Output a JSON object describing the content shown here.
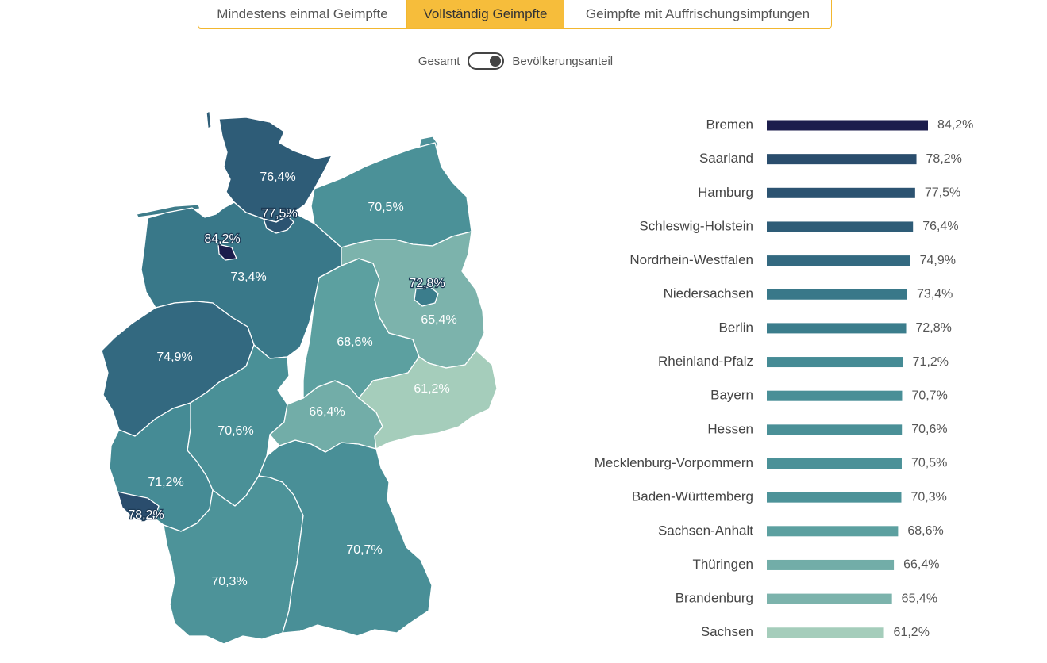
{
  "tabs": [
    {
      "label": "Mindestens einmal Geimpfte",
      "active": false
    },
    {
      "label": "Vollständig Geimpfte",
      "active": true
    },
    {
      "label": "Geimpfte mit Auffrischungsimpfungen",
      "active": false
    }
  ],
  "toggle": {
    "left_label": "Gesamt",
    "right_label": "Bevölkerungsanteil",
    "state": "Bevölkerungsanteil"
  },
  "colors": {
    "accent": "#f6bd3b",
    "scale_low": "#a5cdbb",
    "scale_high": "#1c1d4c"
  },
  "chart_data": {
    "type": "bar",
    "orientation": "horizontal",
    "categories": [
      "Bremen",
      "Saarland",
      "Hamburg",
      "Schleswig-Holstein",
      "Nordrhein-Westfalen",
      "Niedersachsen",
      "Berlin",
      "Rheinland-Pfalz",
      "Bayern",
      "Hessen",
      "Mecklenburg-Vorpommern",
      "Baden-Württemberg",
      "Sachsen-Anhalt",
      "Thüringen",
      "Brandenburg",
      "Sachsen"
    ],
    "values": [
      84.2,
      78.2,
      77.5,
      76.4,
      74.9,
      73.4,
      72.8,
      71.2,
      70.7,
      70.6,
      70.5,
      70.3,
      68.6,
      66.4,
      65.4,
      61.2
    ],
    "value_labels": [
      "84,2%",
      "78,2%",
      "77,5%",
      "76,4%",
      "74,9%",
      "73,4%",
      "72,8%",
      "71,2%",
      "70,7%",
      "70,6%",
      "70,5%",
      "70,3%",
      "68,6%",
      "66,4%",
      "65,4%",
      "61,2%"
    ],
    "unit": "%",
    "map_labels": {
      "Schleswig-Holstein": "76,4%",
      "Hamburg": "77,5%",
      "Mecklenburg-Vorpommern": "70,5%",
      "Bremen": "84,2%",
      "Niedersachsen": "73,4%",
      "Berlin": "72,8%",
      "Brandenburg": "65,4%",
      "Sachsen-Anhalt": "68,6%",
      "Nordrhein-Westfalen": "74,9%",
      "Sachsen": "61,2%",
      "Thüringen": "66,4%",
      "Hessen": "70,6%",
      "Rheinland-Pfalz": "71,2%",
      "Saarland": "78,2%",
      "Bayern": "70,7%",
      "Baden-Württemberg": "70,3%"
    }
  }
}
